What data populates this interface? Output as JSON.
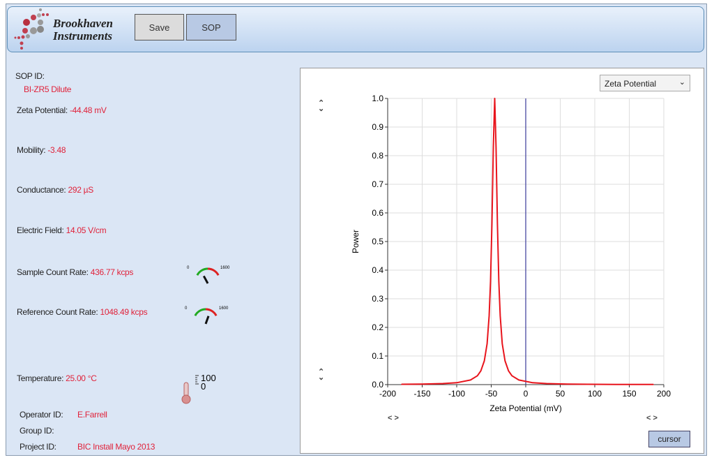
{
  "header": {
    "logo_line1": "Brookhaven",
    "logo_line2": "Instruments",
    "save_label": "Save",
    "sop_label": "SOP"
  },
  "info": {
    "sop_id_label": "SOP ID:",
    "sop_id": "BI-ZR5 Dilute",
    "zeta_label": "Zeta Potential:",
    "zeta": "-44.48 mV",
    "mobility_label": "Mobility:",
    "mobility": "-3.48",
    "conductance_label": "Conductance:",
    "conductance": "292 µS",
    "field_label": "Electric Field:",
    "field": "14.05 V/cm",
    "sample_label": "Sample Count Rate:",
    "sample": "436.77 kcps",
    "reference_label": "Reference Count Rate:",
    "reference": "1048.49 kcps",
    "temp_label": "Temperature:",
    "temp": "25.00 °C",
    "operator_label": "Operator ID:",
    "operator": "E.Farrell",
    "group_label": "Group ID:",
    "project_label": "Project ID:",
    "project": "BIC Install Mayo 2013"
  },
  "gauges": {
    "min": "0",
    "max": "1600",
    "sample_value": 436.77,
    "reference_value": 1048.49,
    "thermo_max": "100",
    "thermo_min": "0",
    "thermo_value": 25
  },
  "controls": {
    "dropdown_value": "Zeta Potential",
    "cursor_label": "cursor"
  },
  "colors": {
    "curve": "#e8141c",
    "marker": "#3a3a9a",
    "value_text": "#e0223a"
  },
  "chart_data": {
    "type": "line",
    "xlabel": "Zeta Potential (mV)",
    "ylabel": "Power",
    "xlim": [
      -200,
      200
    ],
    "ylim": [
      0,
      1
    ],
    "grid": true,
    "xticks": [
      "-200",
      "-150",
      "-100",
      "-50",
      "0",
      "50",
      "100",
      "150",
      "200"
    ],
    "yticks": [
      "0.0",
      "0.1",
      "0.2",
      "0.3",
      "0.4",
      "0.5",
      "0.6",
      "0.7",
      "0.8",
      "0.9",
      "1.0"
    ],
    "marker_x": 0,
    "series": [
      {
        "x": [
          -180,
          -150,
          -120,
          -100,
          -80,
          -70,
          -65,
          -60,
          -56,
          -53,
          -51,
          -49,
          -47,
          -45,
          -43,
          -41,
          -39,
          -37,
          -34,
          -30,
          -25,
          -20,
          -10,
          10,
          30,
          60,
          90,
          130,
          185
        ],
        "y": [
          0.0011,
          0.0018,
          0.0036,
          0.0067,
          0.016,
          0.031,
          0.048,
          0.083,
          0.143,
          0.24,
          0.36,
          0.56,
          0.83,
          1.0,
          0.83,
          0.56,
          0.36,
          0.24,
          0.143,
          0.083,
          0.048,
          0.031,
          0.016,
          0.0067,
          0.0036,
          0.0018,
          0.0011,
          0.0007,
          0.0004
        ]
      }
    ]
  }
}
